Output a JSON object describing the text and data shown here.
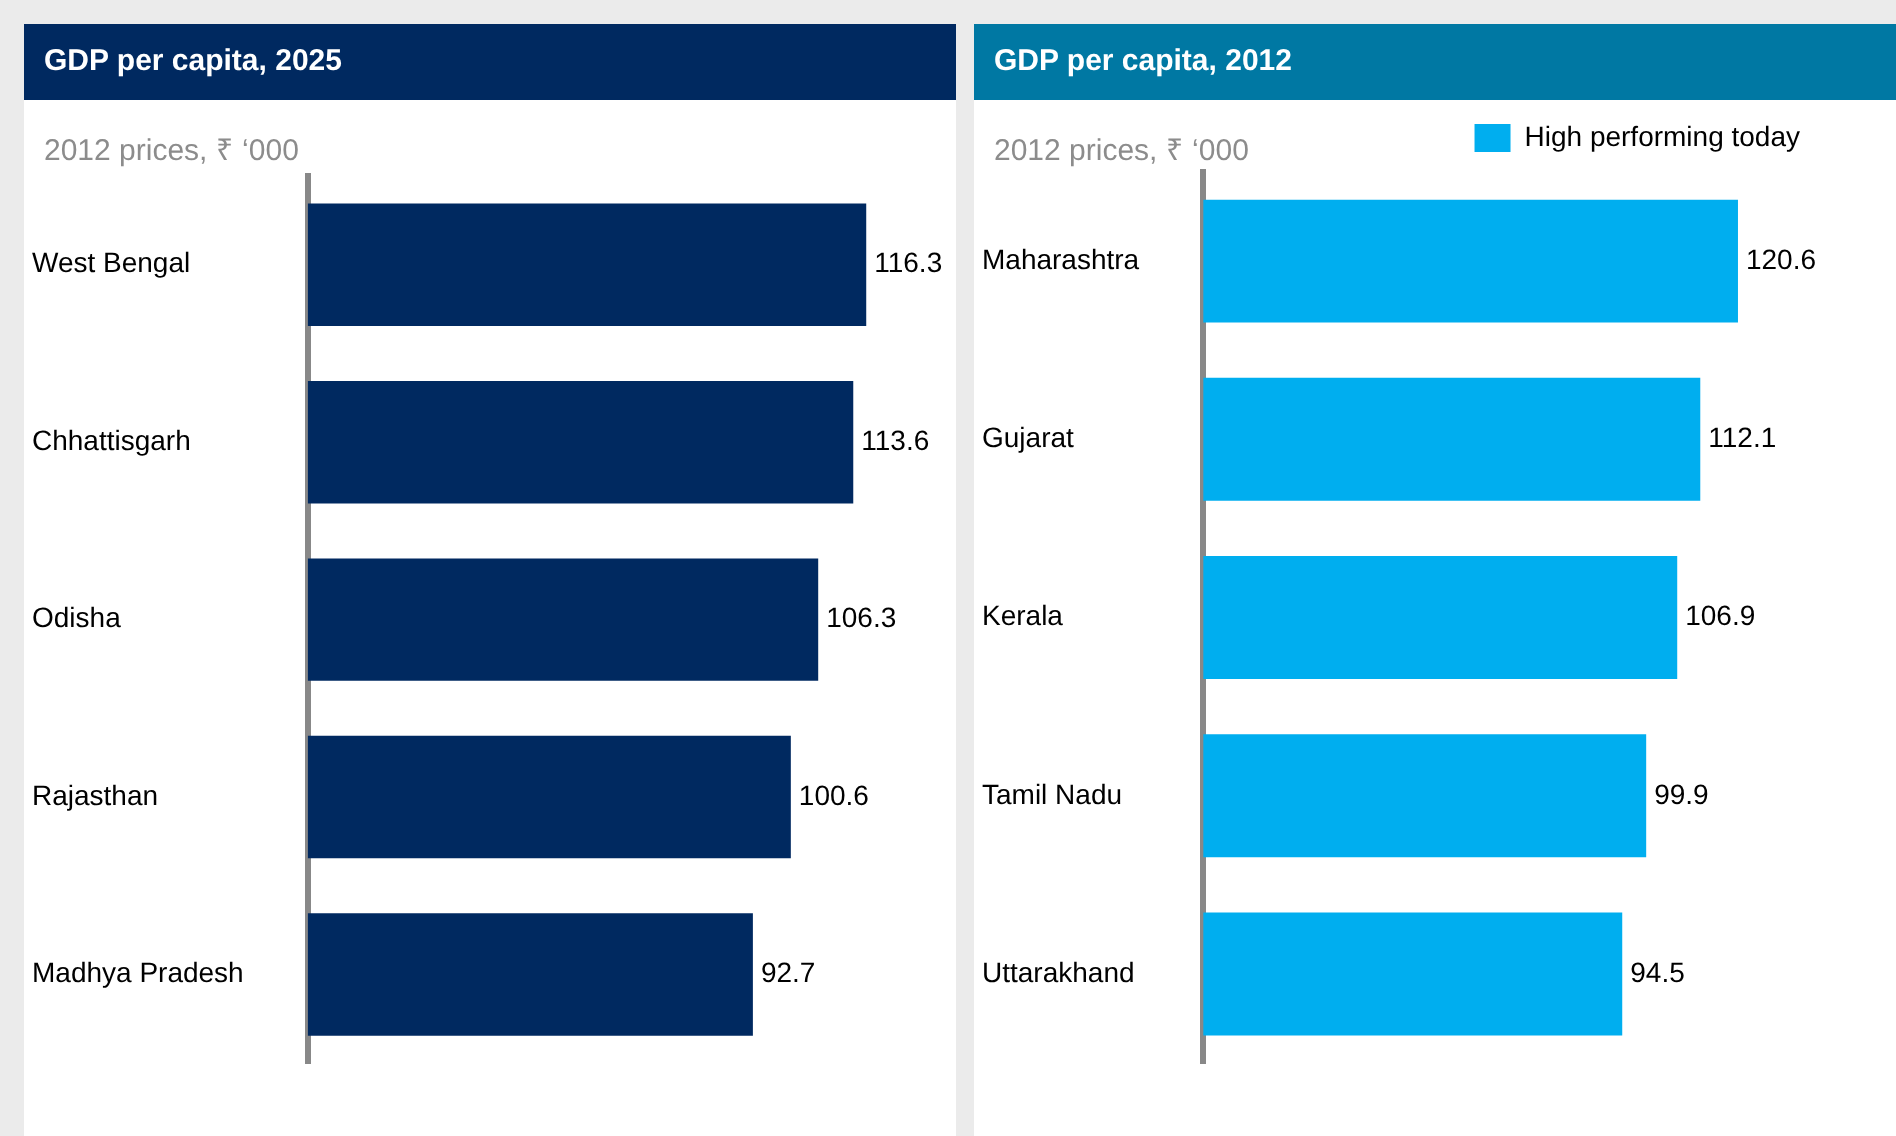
{
  "chart_data": [
    {
      "type": "bar",
      "orientation": "horizontal",
      "title": "GDP per capita, 2025",
      "subtitle": "2012 prices, ₹ ‘000",
      "categories": [
        "West Bengal",
        "Chhattisgarh",
        "Odisha",
        "Rajasthan",
        "Madhya Pradesh"
      ],
      "series": [
        {
          "color": "#002960",
          "values": [
            116.3,
            113.6,
            106.3,
            100.6,
            92.7
          ]
        }
      ],
      "data_labels": true,
      "grid": false,
      "legend": false,
      "tick_labels": "y"
    },
    {
      "type": "bar",
      "orientation": "horizontal",
      "title": "GDP per capita, 2012",
      "subtitle": "2012 prices, ₹  ‘000",
      "categories": [
        "Maharashtra",
        "Gujarat",
        "Kerala",
        "Tamil Nadu",
        "Uttarakhand"
      ],
      "series": [
        {
          "name": "High performing today",
          "color": "#00aeef",
          "values": [
            120.6,
            112.1,
            106.9,
            99.9,
            94.5
          ]
        }
      ],
      "data_labels": true,
      "grid": false,
      "legend": "top right",
      "tick_labels": "y"
    }
  ]
}
